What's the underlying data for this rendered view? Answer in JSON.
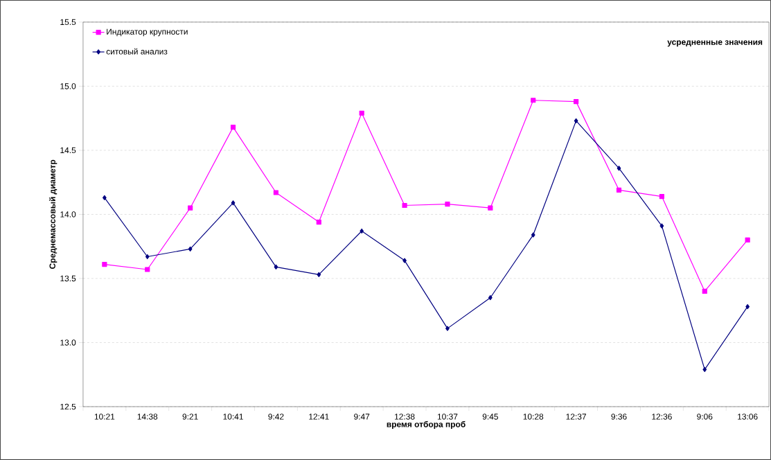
{
  "chart_data": {
    "type": "line",
    "categories": [
      "10:21",
      "14:38",
      "9:21",
      "10:41",
      "9:42",
      "12:41",
      "9:47",
      "12:38",
      "10:37",
      "9:45",
      "10:28",
      "12:37",
      "9:36",
      "12:36",
      "9:06",
      "13:06"
    ],
    "series": [
      {
        "name": "Индикатор крупности",
        "color": "#ff00ff",
        "marker": "square",
        "values": [
          13.61,
          13.57,
          14.05,
          14.68,
          14.17,
          13.94,
          14.79,
          14.07,
          14.08,
          14.05,
          14.89,
          14.88,
          14.19,
          14.14,
          13.4,
          13.8
        ]
      },
      {
        "name": "ситовый анализ",
        "color": "#000080",
        "marker": "diamond",
        "values": [
          14.13,
          13.67,
          13.73,
          14.09,
          13.59,
          13.53,
          13.87,
          13.64,
          13.11,
          13.35,
          13.84,
          14.73,
          14.36,
          13.91,
          12.79,
          13.28
        ]
      }
    ],
    "xlabel": "время отбора проб",
    "ylabel": "Среднемассовый диаметр",
    "annotations": [
      "усредненные значения"
    ],
    "ylim": [
      12.5,
      15.5
    ],
    "yticks": [
      {
        "value": 12.5,
        "label": "12.5"
      },
      {
        "value": 13,
        "label": "13.0"
      },
      {
        "value": 13.5,
        "label": "13.5"
      },
      {
        "value": 14,
        "label": "14.0"
      },
      {
        "value": 14.5,
        "label": "14.5"
      },
      {
        "value": 15,
        "label": "15.0"
      },
      {
        "value": 15.5,
        "label": "15.5"
      }
    ],
    "grid": "y",
    "legend": "top left",
    "line_style": "solid"
  }
}
